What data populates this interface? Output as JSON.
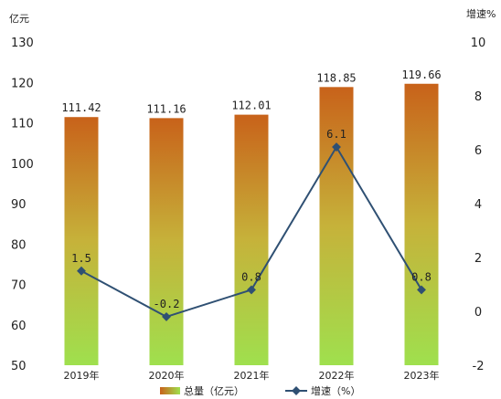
{
  "chart_data": {
    "type": "bar",
    "categories": [
      "2019年",
      "2020年",
      "2021年",
      "2022年",
      "2023年"
    ],
    "left_axis": {
      "unit": "亿元",
      "ticks": [
        "130",
        "120",
        "110",
        "100",
        "90",
        "80",
        "70",
        "60",
        "50"
      ],
      "ylim": [
        50,
        130
      ]
    },
    "right_axis": {
      "unit": "增速%",
      "ticks": [
        "10",
        "8",
        "6",
        "4",
        "2",
        "0",
        "-2"
      ],
      "ylim": [
        -2,
        10
      ]
    },
    "series": [
      {
        "name": "总量（亿元）",
        "type": "bar",
        "axis": "left",
        "values": [
          111.42,
          111.16,
          112.01,
          118.85,
          119.66
        ],
        "labels": [
          "111.42",
          "111.16",
          "112.01",
          "118.85",
          "119.66"
        ],
        "color_top": "#c8621a",
        "color_bottom": "#9fe04e"
      },
      {
        "name": "增速（%）",
        "type": "line",
        "axis": "right",
        "values": [
          1.5,
          -0.2,
          0.8,
          6.1,
          0.8
        ],
        "labels": [
          "1.5",
          "-0.2",
          "0.8",
          "6.1",
          "0.8"
        ],
        "color": "#2f5073"
      }
    ],
    "grid": false,
    "legend_position": "bottom"
  }
}
